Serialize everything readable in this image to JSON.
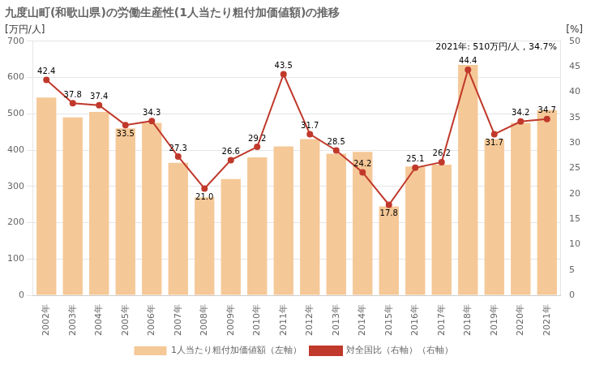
{
  "chart_data": {
    "type": "bar",
    "title": "九度山町(和歌山県)の労働生産性(1人当たり粗付加価値額)の推移",
    "ylabel": "[万円/人]",
    "y2label": "[%]",
    "annotation": "2021年: 510万円/人，34.7%",
    "categories": [
      "2002年",
      "2003年",
      "2004年",
      "2005年",
      "2006年",
      "2007年",
      "2008年",
      "2009年",
      "2010年",
      "2011年",
      "2012年",
      "2013年",
      "2014年",
      "2015年",
      "2016年",
      "2017年",
      "2018年",
      "2019年",
      "2020年",
      "2021年"
    ],
    "series": [
      {
        "name": "1人当たり粗付加価値額（左軸）",
        "type": "bar",
        "color": "#F5C897",
        "values": [
          545,
          490,
          505,
          460,
          475,
          365,
          270,
          320,
          380,
          410,
          430,
          390,
          395,
          245,
          355,
          360,
          635,
          430,
          475,
          510
        ]
      },
      {
        "name": "対全国比（右軸）（右軸）",
        "type": "line",
        "axis": "y2",
        "color": "#C0392B",
        "marker": "circle",
        "data_labels": true,
        "values": [
          42.4,
          37.8,
          37.4,
          33.5,
          34.3,
          27.3,
          21.0,
          26.6,
          29.2,
          43.5,
          31.7,
          28.5,
          24.2,
          17.8,
          25.1,
          26.2,
          44.4,
          31.7,
          34.2,
          34.7
        ],
        "value_labels": [
          "42.4",
          "37.8",
          "37.4",
          "33.5",
          "34.3",
          "27.3",
          "21.0",
          "26.6",
          "29.2",
          "43.5",
          "31.7",
          "28.5",
          "24.2",
          "17.8",
          "25.1",
          "26.2",
          "44.4",
          "31.7",
          "34.2",
          "34.7"
        ]
      }
    ],
    "ylim": [
      0,
      700
    ],
    "yticks": [
      0,
      100,
      200,
      300,
      400,
      500,
      600,
      700
    ],
    "y2lim": [
      0,
      50
    ],
    "y2ticks": [
      0,
      5,
      10,
      15,
      20,
      25,
      30,
      35,
      40,
      45,
      50
    ],
    "grid": true,
    "legend": "bottom"
  }
}
